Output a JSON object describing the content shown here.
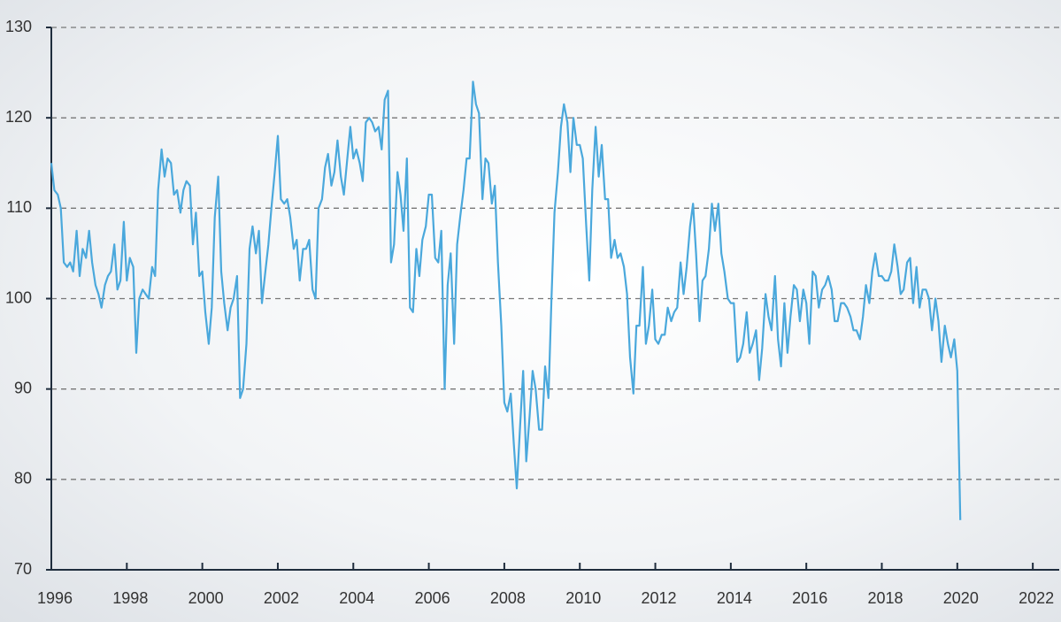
{
  "chart_data": {
    "type": "line",
    "x": [
      1996.0,
      1996.08,
      1996.17,
      1996.25,
      1996.33,
      1996.42,
      1996.5,
      1996.58,
      1996.67,
      1996.75,
      1996.83,
      1996.92,
      1997.0,
      1997.08,
      1997.17,
      1997.25,
      1997.33,
      1997.42,
      1997.5,
      1997.58,
      1997.67,
      1997.75,
      1997.83,
      1997.92,
      1998.0,
      1998.08,
      1998.17,
      1998.25,
      1998.33,
      1998.42,
      1998.5,
      1998.58,
      1998.67,
      1998.75,
      1998.83,
      1998.92,
      1999.0,
      1999.08,
      1999.17,
      1999.25,
      1999.33,
      1999.42,
      1999.5,
      1999.58,
      1999.67,
      1999.75,
      1999.83,
      1999.92,
      2000.0,
      2000.08,
      2000.17,
      2000.25,
      2000.33,
      2000.42,
      2000.5,
      2000.58,
      2000.67,
      2000.75,
      2000.83,
      2000.92,
      2001.0,
      2001.08,
      2001.17,
      2001.25,
      2001.33,
      2001.42,
      2001.5,
      2001.58,
      2001.67,
      2001.75,
      2001.83,
      2001.92,
      2002.0,
      2002.08,
      2002.17,
      2002.25,
      2002.33,
      2002.42,
      2002.5,
      2002.58,
      2002.67,
      2002.75,
      2002.83,
      2002.92,
      2003.0,
      2003.08,
      2003.17,
      2003.25,
      2003.33,
      2003.42,
      2003.5,
      2003.58,
      2003.67,
      2003.75,
      2003.83,
      2003.92,
      2004.0,
      2004.08,
      2004.17,
      2004.25,
      2004.33,
      2004.42,
      2004.5,
      2004.58,
      2004.67,
      2004.75,
      2004.83,
      2004.92,
      2005.0,
      2005.08,
      2005.17,
      2005.25,
      2005.33,
      2005.42,
      2005.5,
      2005.58,
      2005.67,
      2005.75,
      2005.83,
      2005.92,
      2006.0,
      2006.08,
      2006.17,
      2006.25,
      2006.33,
      2006.42,
      2006.5,
      2006.58,
      2006.67,
      2006.75,
      2006.83,
      2006.92,
      2007.0,
      2007.08,
      2007.17,
      2007.25,
      2007.33,
      2007.42,
      2007.5,
      2007.58,
      2007.67,
      2007.75,
      2007.83,
      2007.92,
      2008.0,
      2008.08,
      2008.17,
      2008.25,
      2008.33,
      2008.42,
      2008.5,
      2008.58,
      2008.67,
      2008.75,
      2008.83,
      2008.92,
      2009.0,
      2009.08,
      2009.17,
      2009.25,
      2009.33,
      2009.42,
      2009.5,
      2009.58,
      2009.67,
      2009.75,
      2009.83,
      2009.92,
      2010.0,
      2010.08,
      2010.17,
      2010.25,
      2010.33,
      2010.42,
      2010.5,
      2010.58,
      2010.67,
      2010.75,
      2010.83,
      2010.92,
      2011.0,
      2011.08,
      2011.17,
      2011.25,
      2011.33,
      2011.42,
      2011.5,
      2011.58,
      2011.67,
      2011.75,
      2011.83,
      2011.92,
      2012.0,
      2012.08,
      2012.17,
      2012.25,
      2012.33,
      2012.42,
      2012.5,
      2012.58,
      2012.67,
      2012.75,
      2012.83,
      2012.92,
      2013.0,
      2013.08,
      2013.17,
      2013.25,
      2013.33,
      2013.42,
      2013.5,
      2013.58,
      2013.67,
      2013.75,
      2013.83,
      2013.92,
      2014.0,
      2014.08,
      2014.17,
      2014.25,
      2014.33,
      2014.42,
      2014.5,
      2014.58,
      2014.67,
      2014.75,
      2014.83,
      2014.92,
      2015.0,
      2015.08,
      2015.17,
      2015.25,
      2015.33,
      2015.42,
      2015.5,
      2015.58,
      2015.67,
      2015.75,
      2015.83,
      2015.92,
      2016.0,
      2016.08,
      2016.17,
      2016.25,
      2016.33,
      2016.42,
      2016.5,
      2016.58,
      2016.67,
      2016.75,
      2016.83,
      2016.92,
      2017.0,
      2017.08,
      2017.17,
      2017.25,
      2017.33,
      2017.42,
      2017.5,
      2017.58,
      2017.67,
      2017.75,
      2017.83,
      2017.92,
      2018.0,
      2018.08,
      2018.17,
      2018.25,
      2018.33,
      2018.42,
      2018.5,
      2018.58,
      2018.67,
      2018.75,
      2018.83,
      2018.92,
      2019.0,
      2019.08,
      2019.17,
      2019.25,
      2019.33,
      2019.42,
      2019.5,
      2019.58,
      2019.67,
      2019.75,
      2019.83,
      2019.92,
      2020.0,
      2020.08
    ],
    "series": [
      {
        "color": "#4aa8dc",
        "values": [
          115,
          112,
          111.5,
          110,
          104,
          103.5,
          104,
          103,
          107.5,
          102.5,
          105.5,
          104.5,
          107.5,
          104,
          101.5,
          100.5,
          99,
          101.5,
          102.5,
          103,
          106,
          101,
          102,
          108.5,
          102,
          104.5,
          103.5,
          94,
          100,
          101,
          100.5,
          100,
          103.5,
          102.5,
          112,
          116.5,
          113.5,
          115.5,
          115,
          111.5,
          112,
          109.5,
          112,
          113,
          112.5,
          106,
          109.5,
          102.5,
          103,
          98.5,
          95,
          99,
          109,
          113.5,
          103,
          99.5,
          96.5,
          99,
          100,
          102.5,
          89,
          90,
          95,
          105.5,
          108,
          105,
          107.5,
          99.5,
          103,
          106,
          110,
          114,
          118,
          111,
          110.5,
          111,
          109,
          105.5,
          106.5,
          102,
          105.5,
          105.5,
          106.5,
          101,
          100,
          110,
          111,
          114.5,
          116,
          112.5,
          114,
          117.5,
          113.5,
          111.5,
          115,
          119,
          115.5,
          116.5,
          115,
          113,
          119.5,
          120,
          119.5,
          118.5,
          119,
          116.5,
          122,
          123,
          104,
          106,
          114,
          111.5,
          107.5,
          115.5,
          99,
          98.5,
          105.5,
          102.5,
          106.5,
          108,
          111.5,
          111.5,
          104.5,
          104,
          107.5,
          90,
          101.5,
          105,
          95,
          106,
          109,
          112,
          115.5,
          115.5,
          124,
          121.5,
          120.5,
          111,
          115.5,
          115,
          110.5,
          112.5,
          104,
          97,
          88.5,
          87.5,
          89.5,
          84,
          79,
          86,
          92,
          82,
          87,
          92,
          90,
          85.5,
          85.5,
          92.5,
          89,
          100,
          109.5,
          114,
          119,
          121.5,
          119.5,
          114,
          120,
          117,
          117,
          115.5,
          108,
          102,
          112,
          119,
          113.5,
          117,
          111,
          111,
          104.5,
          106.5,
          104.5,
          105,
          103.5,
          100.5,
          93.5,
          89.5,
          97,
          97,
          103.5,
          95,
          97,
          101,
          95.5,
          95,
          96,
          96,
          99,
          97.5,
          98.5,
          99,
          104,
          100.5,
          103.5,
          108,
          110.5,
          105,
          97.5,
          102,
          102.5,
          105.5,
          110.5,
          107.5,
          110.5,
          105,
          103,
          100,
          99.5,
          99.5,
          93,
          93.5,
          95,
          98.5,
          94,
          95,
          96.5,
          91,
          94.5,
          100.5,
          98,
          96.5,
          102.5,
          95.5,
          92.5,
          99.5,
          94,
          98,
          101.5,
          101,
          97.5,
          101,
          99.5,
          95,
          103,
          102.5,
          99,
          101,
          101.5,
          102.5,
          101,
          97.5,
          97.5,
          99.5,
          99.5,
          99,
          98,
          96.5,
          96.5,
          95.5,
          98,
          101.5,
          99.5,
          103,
          105,
          102.5,
          102.5,
          102,
          102,
          103,
          106,
          103.5,
          100.5,
          101,
          104,
          104.5,
          99.5,
          103.5,
          99,
          101,
          101,
          100,
          96.5,
          100,
          97.5,
          93,
          97,
          95,
          93.5,
          95.5,
          92,
          75.5
        ]
      }
    ],
    "xlim": [
      1996,
      2022.7
    ],
    "xticks": [
      1996,
      1998,
      2000,
      2002,
      2004,
      2006,
      2008,
      2010,
      2012,
      2014,
      2016,
      2018,
      2020,
      2022
    ],
    "ylim": [
      70,
      130
    ],
    "yticks": [
      70,
      80,
      90,
      100,
      110,
      120,
      130
    ],
    "grid": true
  }
}
